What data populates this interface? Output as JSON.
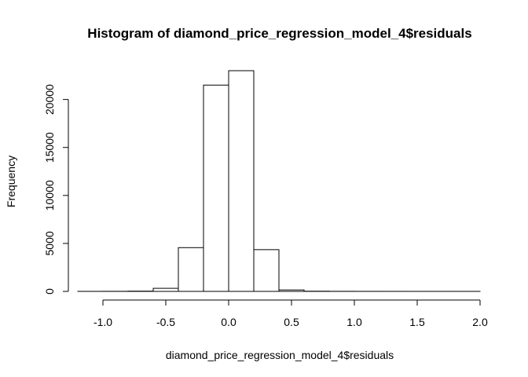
{
  "chart_data": {
    "type": "bar",
    "title": "Histogram of diamond_price_regression_model_4$residuals",
    "xlabel": "diamond_price_regression_model_4$residuals",
    "ylabel": "Frequency",
    "bin_edges": [
      -1.2,
      -1.0,
      -0.8,
      -0.6,
      -0.4,
      -0.2,
      0.0,
      0.2,
      0.4,
      0.6,
      0.8,
      1.0,
      1.2,
      1.4,
      1.6,
      1.8,
      2.0
    ],
    "values": [
      3,
      8,
      25,
      320,
      4560,
      21500,
      23000,
      4350,
      150,
      20,
      8,
      4,
      3,
      2,
      2,
      2
    ],
    "xlim": [
      -1.2,
      2.0
    ],
    "ylim": [
      0,
      23000
    ],
    "xticks": [
      -1.0,
      -0.5,
      0.0,
      0.5,
      1.0,
      1.5,
      2.0
    ],
    "xtick_labels": [
      "-1.0",
      "-0.5",
      "0.0",
      "0.5",
      "1.0",
      "1.5",
      "2.0"
    ],
    "yticks": [
      0,
      5000,
      10000,
      15000,
      20000
    ],
    "ytick_labels": [
      "0",
      "5000",
      "10000",
      "15000",
      "20000"
    ],
    "grid": false,
    "legend": "none"
  }
}
